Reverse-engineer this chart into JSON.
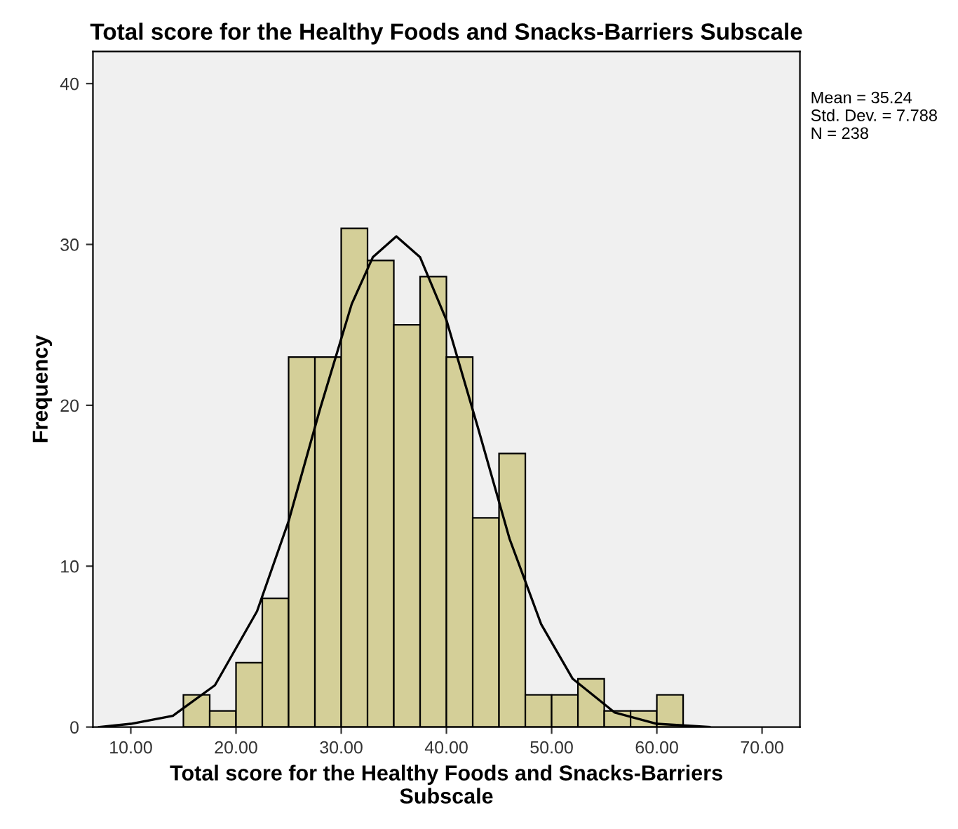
{
  "chart_data": {
    "type": "histogram",
    "title": "Total score for the Healthy Foods and Snacks-Barriers Subscale",
    "xlabel": "Total score for the Healthy Foods and Snacks-Barriers\nSubscale",
    "ylabel": "Frequency",
    "bins": [
      15,
      17.5,
      20,
      22.5,
      25,
      27.5,
      30,
      32.5,
      35,
      37.5,
      40,
      42.5,
      45,
      47.5,
      50,
      52.5,
      55,
      57.5,
      60,
      62.5
    ],
    "values": [
      2,
      1,
      4,
      8,
      23,
      23,
      31,
      29,
      25,
      28,
      23,
      13,
      17,
      2,
      2,
      3,
      1,
      1,
      2
    ],
    "color": "#d4cf98",
    "series": [
      {
        "type": "line",
        "color": "#000000",
        "x": [
          7,
          10,
          14,
          18,
          22,
          25,
          28,
          31,
          33,
          35.24,
          37.5,
          40,
          43,
          46,
          49,
          52,
          56,
          60,
          65
        ],
        "values": [
          0.0,
          0.2,
          0.7,
          2.6,
          7.2,
          12.8,
          19.8,
          26.3,
          29.2,
          30.5,
          29.2,
          25.3,
          18.6,
          11.7,
          6.4,
          3.0,
          0.9,
          0.2,
          0.0
        ]
      }
    ],
    "xlim": [
      6.4,
      73.6
    ],
    "ylim": [
      0,
      42
    ],
    "xticks": [
      {
        "value": 10,
        "label": "10.00"
      },
      {
        "value": 20,
        "label": "20.00"
      },
      {
        "value": 30,
        "label": "30.00"
      },
      {
        "value": 40,
        "label": "40.00"
      },
      {
        "value": 50,
        "label": "50.00"
      },
      {
        "value": 60,
        "label": "60.00"
      },
      {
        "value": 70,
        "label": "70.00"
      }
    ],
    "yticks": [
      0,
      10,
      20,
      30,
      40
    ],
    "grid": false,
    "legend": false,
    "annotations": [
      "Mean = 35.24\nStd. Dev. = 7.788\nN = 238"
    ]
  }
}
